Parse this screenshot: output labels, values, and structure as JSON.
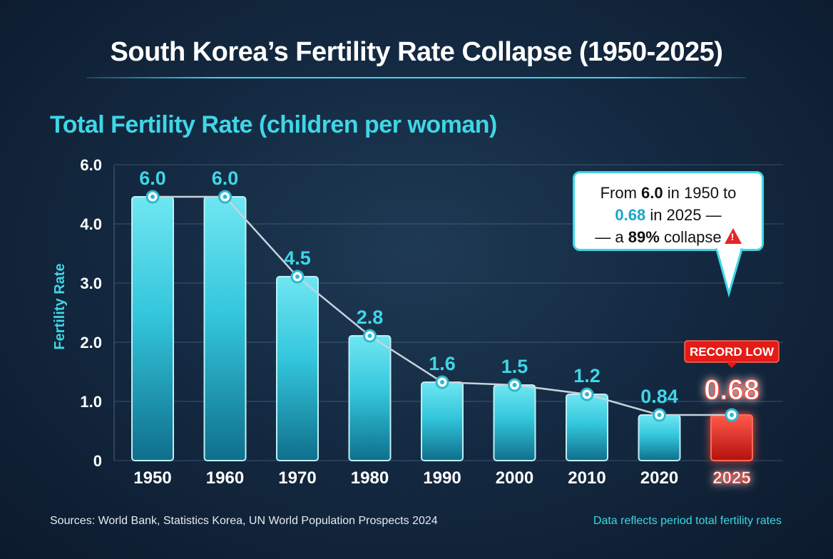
{
  "title": "South Korea’s Fertility Rate Collapse (1950-2025)",
  "subtitle": "Total Fertility Rate (children per woman)",
  "chart_data": {
    "type": "bar",
    "title": "South Korea’s Fertility Rate Collapse (1950-2025)",
    "subtitle": "Total Fertility Rate (children per woman)",
    "ylabel": "Fertility Rate",
    "xlabel": "",
    "categories": [
      "1950",
      "1960",
      "1970",
      "1980",
      "1990",
      "2000",
      "2010",
      "2020",
      "2025"
    ],
    "values": [
      6.0,
      6.0,
      4.5,
      2.8,
      1.6,
      1.5,
      1.2,
      0.84,
      0.68
    ],
    "value_labels": [
      "6.0",
      "6.0",
      "4.5",
      "2.8",
      "1.6",
      "1.5",
      "1.2",
      "0.84",
      "0.68"
    ],
    "yticks": [
      "0",
      "1.0",
      "2.0",
      "3.0",
      "4.0",
      "6.0"
    ],
    "grid": true,
    "highlight_category": "2025",
    "highlight_badge": "RECORD LOW",
    "overlay": "line with markers connecting bar tops"
  },
  "callout": {
    "line1_pre": "From ",
    "line1_bold": "6.0",
    "line1_post": " in 1950 to",
    "line2_teal": "0.68",
    "line2_post": " in 2025 —",
    "line3_pre": "— a ",
    "line3_bold": "89%",
    "line3_post": " collapse",
    "icon": "warning-icon"
  },
  "footer": {
    "sources": "Sources: World Bank, Statistics Korea, UN World Population Prospects 2024",
    "note": "Data reflects period total fertility rates"
  },
  "colors": {
    "accent": "#3fd6e6",
    "bar": "#1fb8cf",
    "highlight": "#e8231f",
    "background": "#142a42"
  }
}
